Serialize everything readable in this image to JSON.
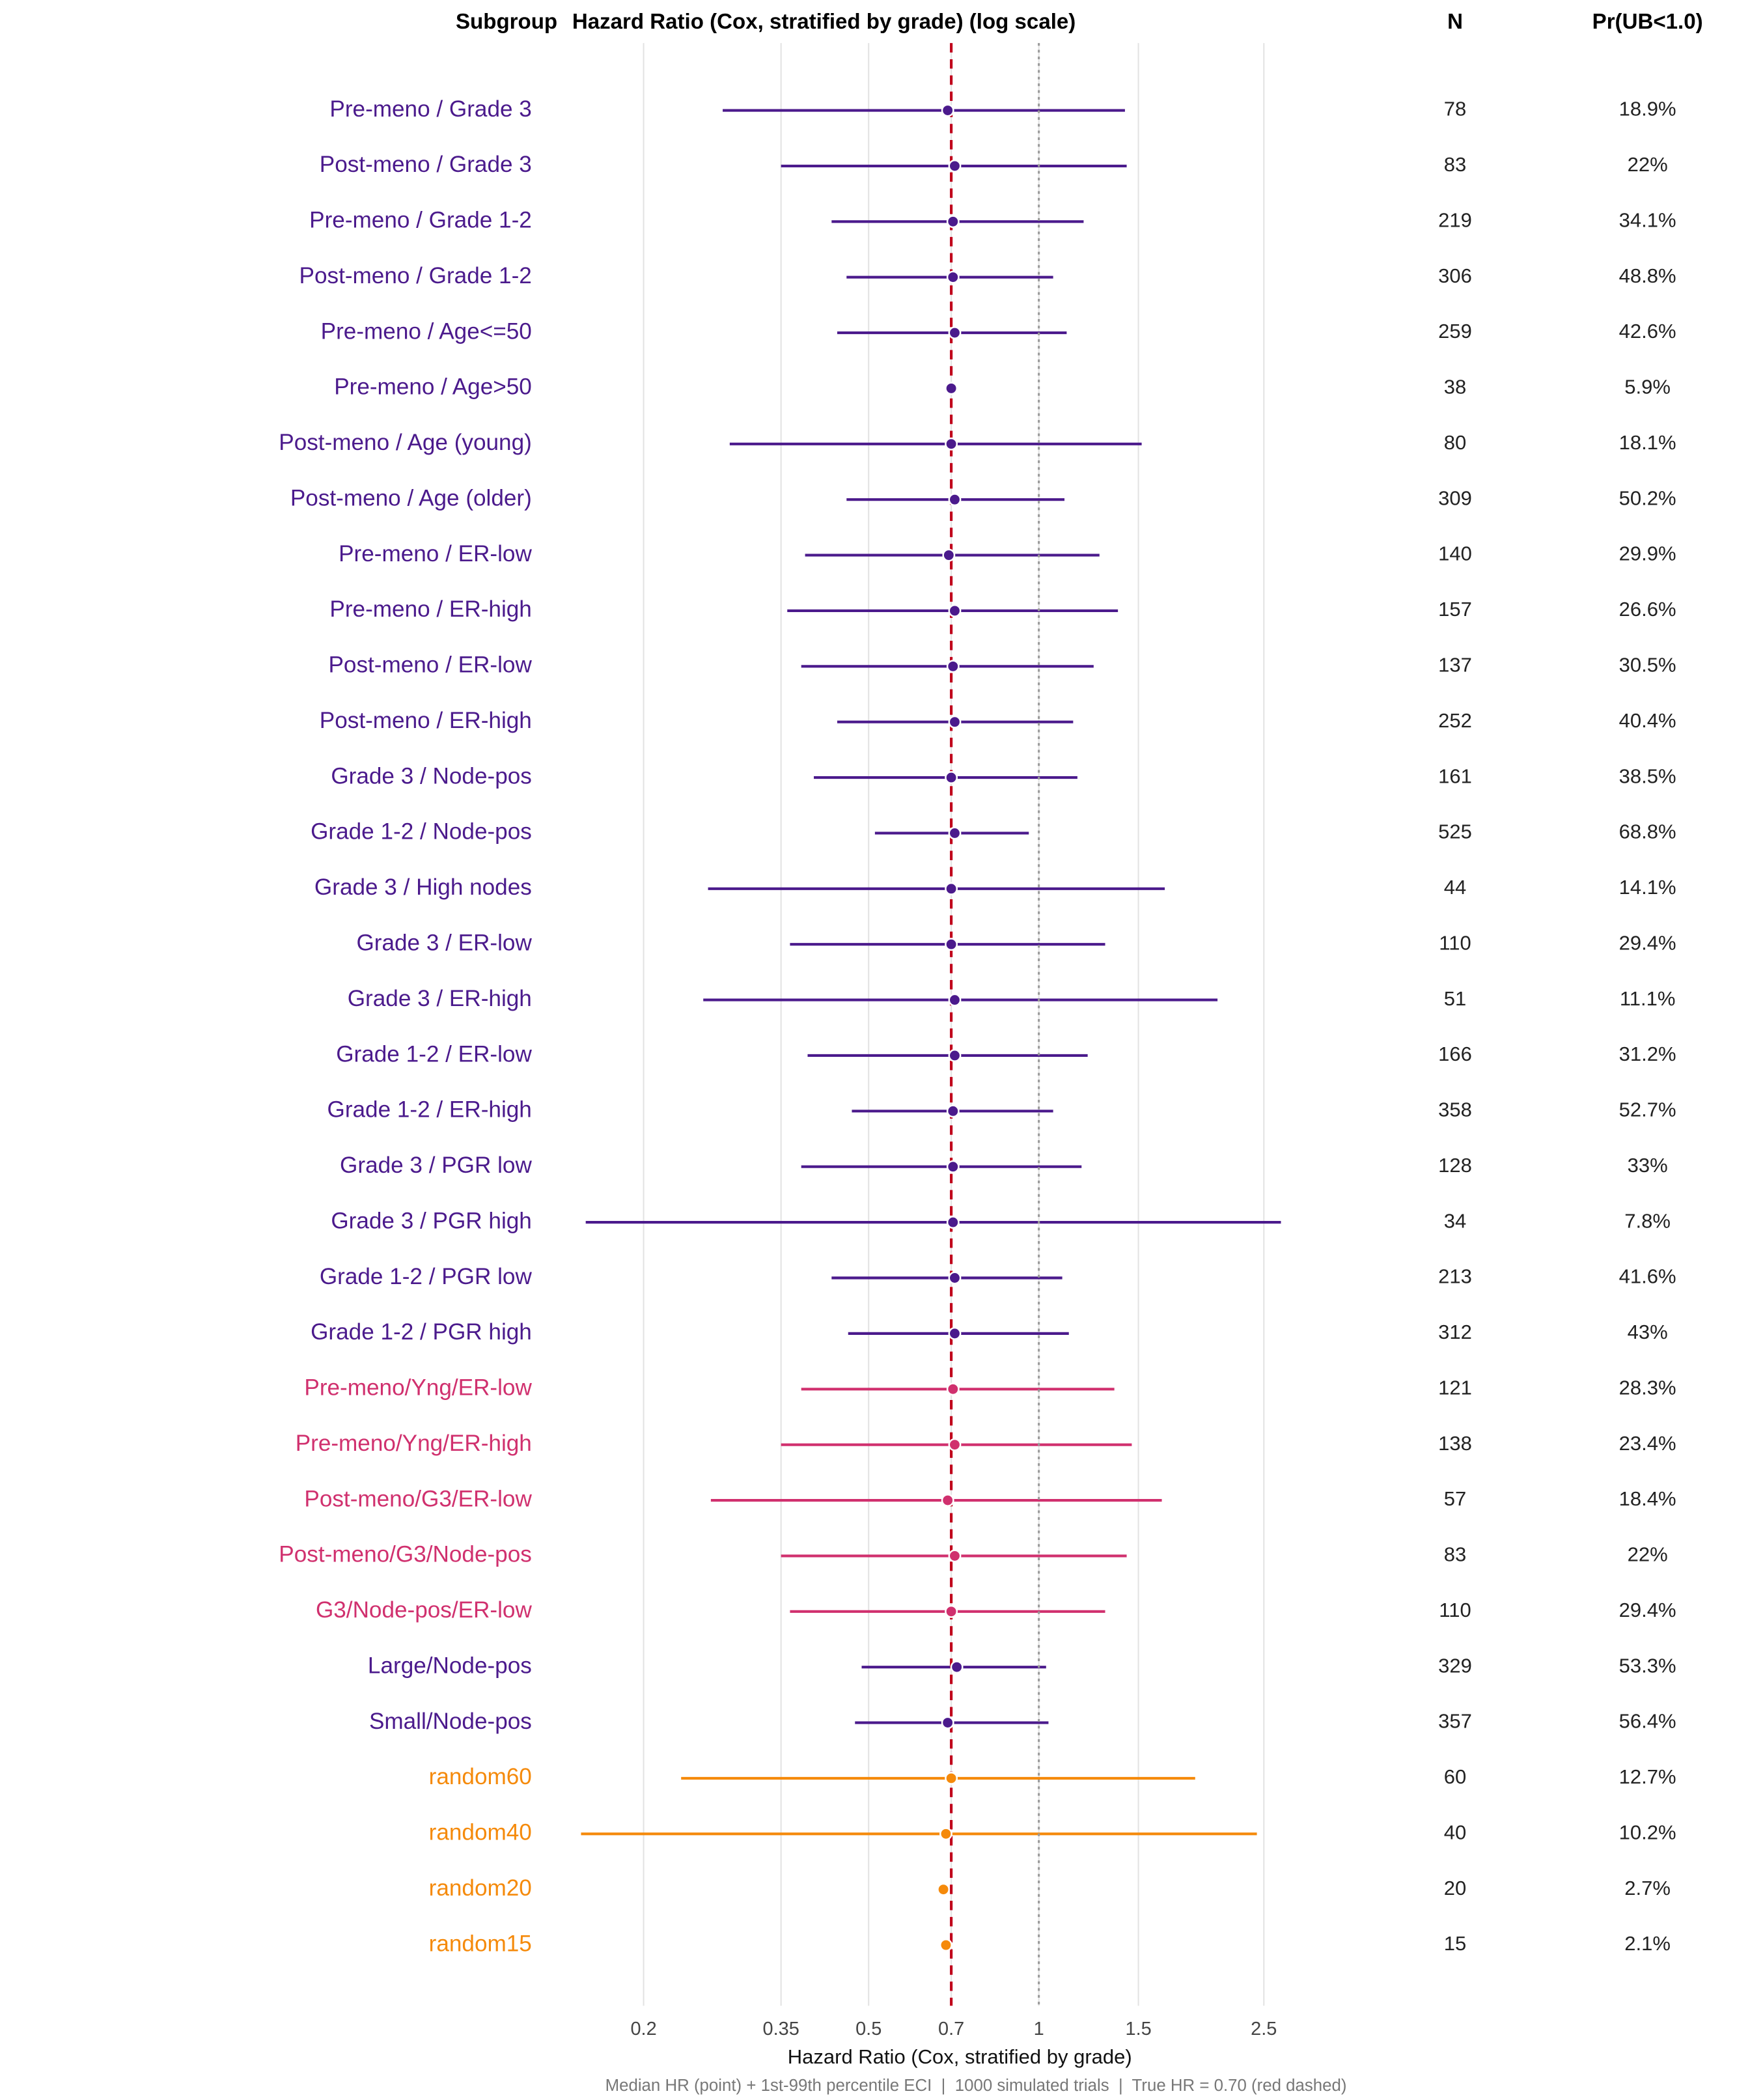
{
  "chart_data": {
    "type": "forest",
    "header_subgroup": "Subgroup",
    "title": "Hazard Ratio (Cox, stratified by grade) (log scale)",
    "header_n": "N",
    "header_pr": "Pr(UB<1.0)",
    "xlabel": "Hazard Ratio (Cox, stratified by grade)",
    "caption": "Median HR (point) + 1st-99th percentile ECI  |  1000 simulated trials  |  True HR = 0.70 (red dashed)",
    "log_x": true,
    "grid": true,
    "xlim": [
      0.14,
      2.9
    ],
    "xticks": [
      0.2,
      0.35,
      0.5,
      0.7,
      1,
      1.5,
      2.5
    ],
    "reference_lines": [
      {
        "value": 0.7,
        "color": "#c0001a",
        "style": "dashed"
      },
      {
        "value": 1,
        "color": "#999999",
        "style": "dotted"
      }
    ],
    "categories": [
      "Pre-meno / Grade 3",
      "Post-meno / Grade 3",
      "Pre-meno / Grade 1-2",
      "Post-meno / Grade 1-2",
      "Pre-meno / Age<=50",
      "Pre-meno / Age>50",
      "Post-meno / Age (young)",
      "Post-meno / Age (older)",
      "Pre-meno / ER-low",
      "Pre-meno / ER-high",
      "Post-meno / ER-low",
      "Post-meno / ER-high",
      "Grade 3 / Node-pos",
      "Grade 1-2 / Node-pos",
      "Grade 3 / High nodes",
      "Grade 3 / ER-low",
      "Grade 3 / ER-high",
      "Grade 1-2 / ER-low",
      "Grade 1-2 / ER-high",
      "Grade 3 / PGR low",
      "Grade 3 / PGR high",
      "Grade 1-2 / PGR low",
      "Grade 1-2 / PGR high",
      "Pre-meno/Yng/ER-low",
      "Pre-meno/Yng/ER-high",
      "Post-meno/G3/ER-low",
      "Post-meno/G3/Node-pos",
      "G3/Node-pos/ER-low",
      "Large/Node-pos",
      "Small/Node-pos",
      "random60",
      "random40",
      "random20",
      "random15"
    ],
    "values": [
      0.69,
      0.71,
      0.705,
      0.705,
      0.71,
      0.7,
      0.7,
      0.71,
      0.693,
      0.71,
      0.705,
      0.71,
      0.7,
      0.71,
      0.7,
      0.7,
      0.71,
      0.71,
      0.705,
      0.705,
      0.705,
      0.71,
      0.71,
      0.705,
      0.71,
      0.69,
      0.71,
      0.7,
      0.716,
      0.69,
      0.7,
      0.685,
      0.678,
      0.685
    ],
    "lower": [
      0.276,
      0.35,
      0.43,
      0.457,
      0.44,
      null,
      0.284,
      0.457,
      0.386,
      0.359,
      0.38,
      0.44,
      0.4,
      0.513,
      0.26,
      0.363,
      0.255,
      0.39,
      0.467,
      0.38,
      0.158,
      0.43,
      0.46,
      0.38,
      0.35,
      0.263,
      0.35,
      0.363,
      0.486,
      0.473,
      0.233,
      0.155,
      null,
      null
    ],
    "upper": [
      1.42,
      1.43,
      1.2,
      1.06,
      1.12,
      null,
      1.52,
      1.11,
      1.28,
      1.38,
      1.25,
      1.15,
      1.17,
      0.96,
      1.67,
      1.31,
      2.07,
      1.22,
      1.06,
      1.19,
      2.68,
      1.1,
      1.13,
      1.36,
      1.46,
      1.65,
      1.43,
      1.31,
      1.03,
      1.04,
      1.89,
      2.43,
      null,
      null
    ],
    "colors": [
      "#4b1a8c",
      "#4b1a8c",
      "#4b1a8c",
      "#4b1a8c",
      "#4b1a8c",
      "#4b1a8c",
      "#4b1a8c",
      "#4b1a8c",
      "#4b1a8c",
      "#4b1a8c",
      "#4b1a8c",
      "#4b1a8c",
      "#4b1a8c",
      "#4b1a8c",
      "#4b1a8c",
      "#4b1a8c",
      "#4b1a8c",
      "#4b1a8c",
      "#4b1a8c",
      "#4b1a8c",
      "#4b1a8c",
      "#4b1a8c",
      "#4b1a8c",
      "#d0306e",
      "#d0306e",
      "#d0306e",
      "#d0306e",
      "#d0306e",
      "#4b1a8c",
      "#4b1a8c",
      "#f58a0b",
      "#f58a0b",
      "#f58a0b",
      "#f58a0b"
    ],
    "n": [
      78,
      83,
      219,
      306,
      259,
      38,
      80,
      309,
      140,
      157,
      137,
      252,
      161,
      525,
      44,
      110,
      51,
      166,
      358,
      128,
      34,
      213,
      312,
      121,
      138,
      57,
      83,
      110,
      329,
      357,
      60,
      40,
      20,
      15
    ],
    "pr_ub_lt_1": [
      "18.9%",
      "22%",
      "34.1%",
      "48.8%",
      "42.6%",
      "5.9%",
      "18.1%",
      "50.2%",
      "29.9%",
      "26.6%",
      "30.5%",
      "40.4%",
      "38.5%",
      "68.8%",
      "14.1%",
      "29.4%",
      "11.1%",
      "31.2%",
      "52.7%",
      "33%",
      "7.8%",
      "41.6%",
      "43%",
      "28.3%",
      "23.4%",
      "18.4%",
      "22%",
      "29.4%",
      "53.3%",
      "56.4%",
      "12.7%",
      "10.2%",
      "2.7%",
      "2.1%"
    ]
  }
}
